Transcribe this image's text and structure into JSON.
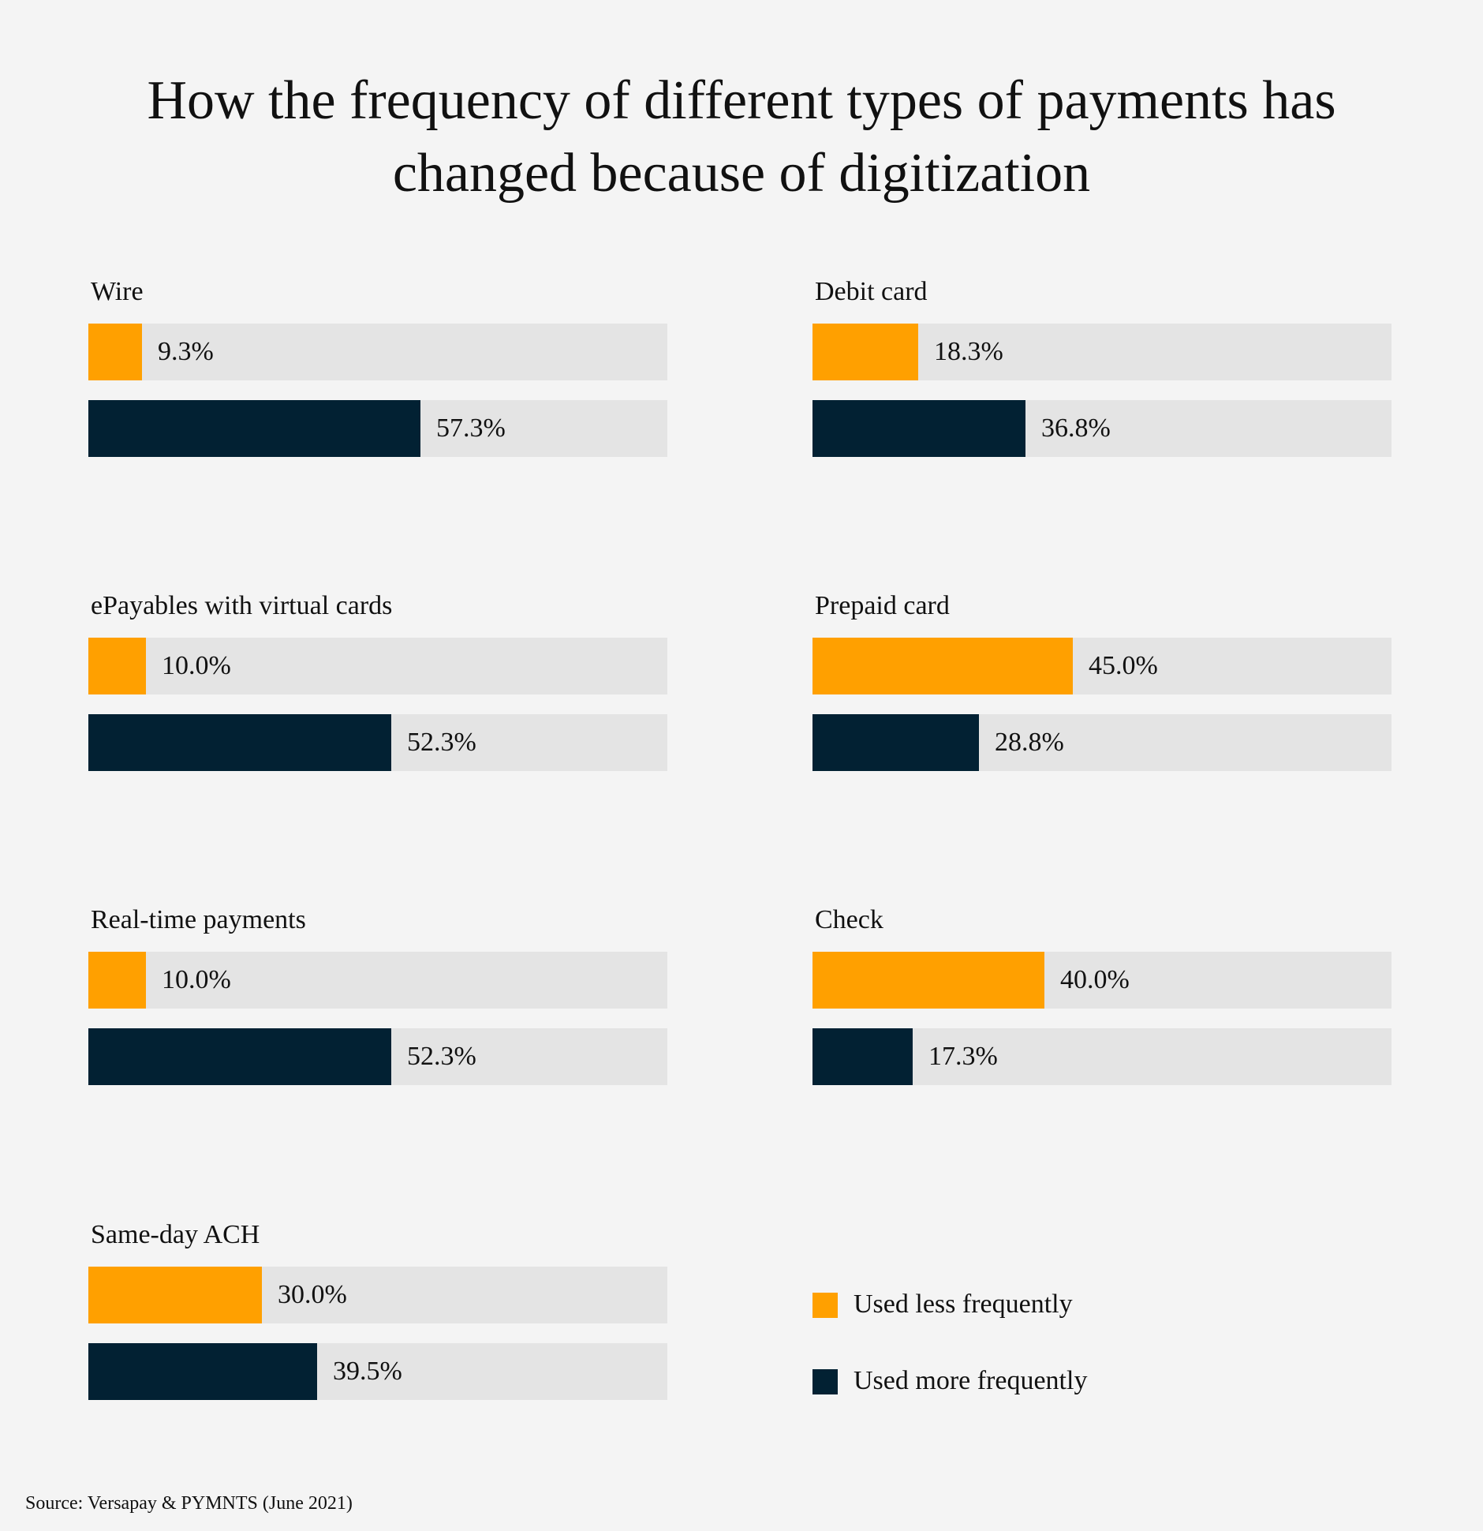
{
  "chart_data": {
    "type": "bar",
    "title": "How the frequency of different types of payments has changed because of digitization",
    "title_lines": [
      "How the frequency of different types of payments has",
      "changed because of digitization"
    ],
    "xlim": [
      0,
      100
    ],
    "legend": [
      {
        "key": "less",
        "label": "Used less frequently",
        "color": "#ffa000"
      },
      {
        "key": "more",
        "label": "Used more frequently",
        "color": "#022133"
      }
    ],
    "legend_placement": "bottom-right",
    "track_color": "#e4e4e4",
    "series": [
      {
        "name": "Used less frequently",
        "values": [
          9.3,
          18.3,
          10.0,
          45.0,
          10.0,
          40.0,
          30.0
        ]
      },
      {
        "name": "Used more frequently",
        "values": [
          57.3,
          36.8,
          52.3,
          28.8,
          52.3,
          17.3,
          39.5
        ]
      }
    ],
    "categories": [
      "Wire",
      "Debit card",
      "ePayables with virtual cards",
      "Prepaid card",
      "Real-time payments",
      "Check",
      "Same-day ACH"
    ],
    "panels": [
      {
        "label": "Wire",
        "less": 9.3,
        "less_label": "9.3%",
        "more": 57.3,
        "more_label": "57.3%"
      },
      {
        "label": "Debit card",
        "less": 18.3,
        "less_label": "18.3%",
        "more": 36.8,
        "more_label": "36.8%"
      },
      {
        "label": "ePayables with virtual cards",
        "less": 10.0,
        "less_label": "10.0%",
        "more": 52.3,
        "more_label": "52.3%"
      },
      {
        "label": "Prepaid card",
        "less": 45.0,
        "less_label": "45.0%",
        "more": 28.8,
        "more_label": "28.8%"
      },
      {
        "label": "Real-time payments",
        "less": 10.0,
        "less_label": "10.0%",
        "more": 52.3,
        "more_label": "52.3%"
      },
      {
        "label": "Check",
        "less": 40.0,
        "less_label": "40.0%",
        "more": 17.3,
        "more_label": "17.3%"
      },
      {
        "label": "Same-day ACH",
        "less": 30.0,
        "less_label": "30.0%",
        "more": 39.5,
        "more_label": "39.5%"
      }
    ],
    "source": "Source: Versapay & PYMNTS (June 2021)"
  }
}
